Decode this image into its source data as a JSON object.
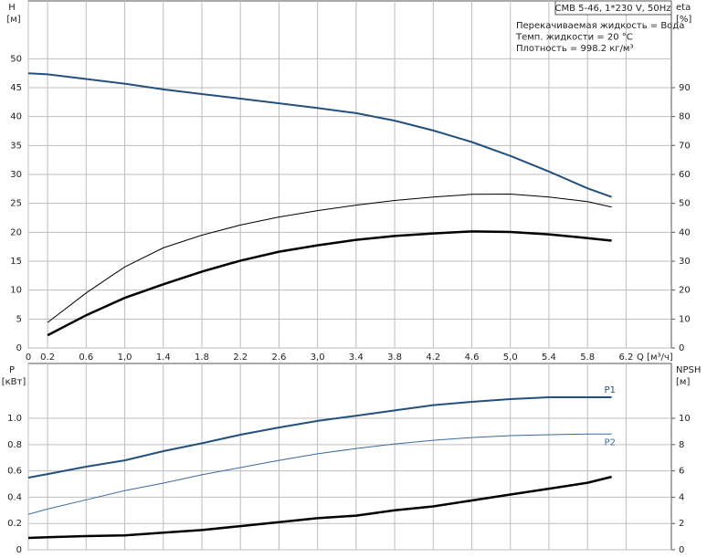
{
  "chart_data": [
    {
      "type": "line",
      "title": "CMB 5-46, 1*230 V, 50Hz",
      "annotations": [
        "Перекачиваемая жидкость = Вода",
        "Темп. жидкости = 20 °C",
        "Плотность = 998.2 кг/м³"
      ],
      "y_label": {
        "name": "H",
        "unit": "[м]"
      },
      "y2_label": {
        "name": "eta",
        "unit": "[%]"
      },
      "x_label": "Q [м³/ч]",
      "x": [
        0,
        0.2,
        0.6,
        1.0,
        1.4,
        1.8,
        2.2,
        2.6,
        3.0,
        3.4,
        3.8,
        4.2,
        4.6,
        5.0,
        5.4,
        5.8,
        6.05
      ],
      "xlim": [
        0,
        6.67
      ],
      "xticks": [
        0,
        0.2,
        0.6,
        {
          "value": 1,
          "label": "1,0"
        },
        1.4,
        1.8,
        2.2,
        2.6,
        {
          "value": 3,
          "label": "3,0"
        },
        3.4,
        3.8,
        4.2,
        4.6,
        {
          "value": 5,
          "label": "5,0"
        },
        5.4,
        5.8,
        6.2
      ],
      "xtick_labels": [
        "0",
        "0,2",
        "0,6",
        "1,0",
        "1,4",
        "1,8",
        "2,2",
        "2,6",
        "3,0",
        "3,4",
        "3,8",
        "4,2",
        "4,6",
        "5,0",
        "5,4",
        "5,8",
        "6,2"
      ],
      "ylim": [
        0,
        60
      ],
      "yticks": [
        0,
        5,
        10,
        15,
        20,
        25,
        30,
        35,
        40,
        45,
        50
      ],
      "y2lim": [
        0,
        120
      ],
      "y2ticks": [
        0,
        10,
        20,
        30,
        40,
        50,
        60,
        70,
        80,
        90
      ],
      "grid": true,
      "series": [
        {
          "color": "#24507c",
          "width": 2,
          "values": [
            47.5,
            47.3,
            46.5,
            45.7,
            44.7,
            43.9,
            43.1,
            42.3,
            41.5,
            40.6,
            39.3,
            37.6,
            35.6,
            33.2,
            30.5,
            27.6,
            26.1
          ]
        },
        {
          "color": "#000000",
          "width": 1,
          "axis": "y2",
          "values": [
            null,
            8.8,
            19,
            28,
            34.6,
            39,
            42.5,
            45.3,
            47.5,
            49.4,
            51,
            52.2,
            53.1,
            53.2,
            52.2,
            50.6,
            48.7
          ]
        },
        {
          "color": "#000000",
          "width": 2.5,
          "axis": "y2",
          "values": [
            null,
            4.4,
            11.3,
            17.3,
            22,
            26.4,
            30.2,
            33.3,
            35.5,
            37.4,
            38.7,
            39.6,
            40.3,
            40.1,
            39.3,
            38,
            37.1
          ]
        }
      ]
    },
    {
      "type": "line",
      "y_label": {
        "name": "P",
        "unit": "[кВт]"
      },
      "y2_label": {
        "name": "NPSH",
        "unit": "[м]"
      },
      "x": [
        0,
        0.2,
        0.6,
        1.0,
        1.4,
        1.8,
        2.2,
        2.6,
        3.0,
        3.4,
        3.8,
        4.2,
        4.6,
        5.0,
        5.4,
        5.8,
        6.05
      ],
      "xlim": [
        0,
        6.67
      ],
      "ylim": [
        0,
        1.417
      ],
      "yticks": [
        0,
        0.2,
        0.4,
        0.6,
        0.8,
        {
          "value": 1,
          "label": "1.0"
        }
      ],
      "y2lim": [
        0,
        14.17
      ],
      "y2ticks": [
        0,
        2,
        4,
        6,
        8,
        10
      ],
      "grid": true,
      "series": [
        {
          "name": "P1",
          "color": "#24507c",
          "width": 2,
          "values": [
            0.549,
            0.576,
            0.632,
            0.68,
            0.75,
            0.81,
            0.875,
            0.93,
            0.98,
            1.02,
            1.06,
            1.1,
            1.125,
            1.146,
            1.16,
            1.16,
            1.16
          ]
        },
        {
          "name": "P2",
          "color": "#3a6aa0",
          "width": 1,
          "values": [
            0.27,
            0.31,
            0.38,
            0.45,
            0.507,
            0.57,
            0.625,
            0.68,
            0.73,
            0.77,
            0.805,
            0.833,
            0.854,
            0.868,
            0.875,
            0.88,
            0.88
          ]
        },
        {
          "color": "#000000",
          "width": 2.5,
          "axis": "y2",
          "values": [
            0.9,
            0.95,
            1.04,
            1.1,
            1.3,
            1.5,
            1.8,
            2.1,
            2.4,
            2.6,
            3.0,
            3.3,
            3.75,
            4.2,
            4.65,
            5.1,
            5.55
          ]
        }
      ]
    }
  ]
}
